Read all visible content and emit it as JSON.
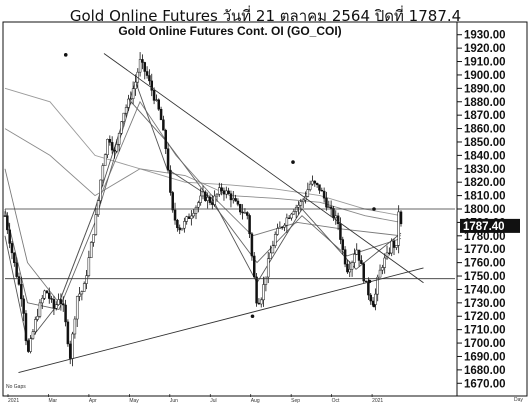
{
  "caption": "Gold Online Futures วันที่ 21 ตุลาคม 2564 ปิดที่ 1787.4",
  "chart_data": {
    "type": "candlestick",
    "title": "Gold Online Futures Cont. OI (GO_COI)",
    "y_ticks": [
      1670,
      1680,
      1690,
      1700,
      1710,
      1720,
      1730,
      1740,
      1750,
      1760,
      1770,
      1780,
      1790,
      1800,
      1810,
      1820,
      1830,
      1840,
      1850,
      1860,
      1870,
      1880,
      1890,
      1900,
      1910,
      1920,
      1930
    ],
    "y_tick_labels": [
      "1670.00",
      "1680.00",
      "1690.00",
      "1700.00",
      "1710.00",
      "1720.00",
      "1730.00",
      "1740.00",
      "1750.00",
      "1760.00",
      "1770.00",
      "1780.00",
      "1790.00",
      "1800.00",
      "1810.00",
      "1820.00",
      "1830.00",
      "1840.00",
      "1850.00",
      "1860.00",
      "1870.00",
      "1880.00",
      "1890.00",
      "1900.00",
      "1910.00",
      "1920.00",
      "1930.00"
    ],
    "ylim": [
      1662,
      1938
    ],
    "x_tick_labels": [
      "2021",
      "Mar",
      "Apr",
      "May",
      "Jun",
      "Jul",
      "Aug",
      "Sep",
      "Oct",
      "2021"
    ],
    "x_unit": "Day",
    "bottom_left_note": "No Gaps",
    "grid": false,
    "last_price": 1787.4,
    "last_price_label": "1787.40",
    "horizontal_levels": [
      1800,
      1748
    ],
    "trendlines": [
      {
        "from": [
          0.03,
          1678
        ],
        "to": [
          0.93,
          1756
        ]
      },
      {
        "from": [
          0.22,
          1916
        ],
        "to": [
          0.93,
          1745
        ]
      }
    ],
    "price_path": [
      [
        0.0,
        1795
      ],
      [
        0.02,
        1760
      ],
      [
        0.04,
        1730
      ],
      [
        0.05,
        1690
      ],
      [
        0.07,
        1720
      ],
      [
        0.09,
        1740
      ],
      [
        0.11,
        1725
      ],
      [
        0.12,
        1735
      ],
      [
        0.13,
        1725
      ],
      [
        0.145,
        1690
      ],
      [
        0.16,
        1735
      ],
      [
        0.175,
        1740
      ],
      [
        0.19,
        1770
      ],
      [
        0.205,
        1800
      ],
      [
        0.215,
        1830
      ],
      [
        0.23,
        1855
      ],
      [
        0.245,
        1840
      ],
      [
        0.26,
        1870
      ],
      [
        0.275,
        1880
      ],
      [
        0.29,
        1895
      ],
      [
        0.3,
        1910
      ],
      [
        0.315,
        1900
      ],
      [
        0.33,
        1885
      ],
      [
        0.345,
        1870
      ],
      [
        0.36,
        1840
      ],
      [
        0.37,
        1800
      ],
      [
        0.38,
        1790
      ],
      [
        0.39,
        1785
      ],
      [
        0.4,
        1790
      ],
      [
        0.42,
        1800
      ],
      [
        0.44,
        1810
      ],
      [
        0.46,
        1805
      ],
      [
        0.48,
        1815
      ],
      [
        0.5,
        1810
      ],
      [
        0.52,
        1800
      ],
      [
        0.54,
        1795
      ],
      [
        0.55,
        1760
      ],
      [
        0.56,
        1730
      ],
      [
        0.57,
        1735
      ],
      [
        0.585,
        1760
      ],
      [
        0.6,
        1780
      ],
      [
        0.62,
        1790
      ],
      [
        0.64,
        1800
      ],
      [
        0.66,
        1805
      ],
      [
        0.68,
        1820
      ],
      [
        0.7,
        1815
      ],
      [
        0.72,
        1800
      ],
      [
        0.74,
        1790
      ],
      [
        0.75,
        1770
      ],
      [
        0.76,
        1755
      ],
      [
        0.77,
        1760
      ],
      [
        0.78,
        1772
      ],
      [
        0.79,
        1760
      ],
      [
        0.8,
        1745
      ],
      [
        0.81,
        1735
      ],
      [
        0.82,
        1730
      ],
      [
        0.83,
        1750
      ],
      [
        0.84,
        1760
      ],
      [
        0.85,
        1765
      ],
      [
        0.86,
        1775
      ],
      [
        0.87,
        1770
      ],
      [
        0.875,
        1800
      ],
      [
        0.88,
        1787.4
      ]
    ],
    "moving_averages": [
      [
        [
          0.0,
          1890
        ],
        [
          0.1,
          1880
        ],
        [
          0.2,
          1840
        ],
        [
          0.3,
          1830
        ],
        [
          0.4,
          1820
        ],
        [
          0.5,
          1818
        ],
        [
          0.6,
          1815
        ],
        [
          0.7,
          1810
        ],
        [
          0.8,
          1800
        ],
        [
          0.88,
          1795
        ]
      ],
      [
        [
          0.0,
          1860
        ],
        [
          0.1,
          1840
        ],
        [
          0.2,
          1810
        ],
        [
          0.3,
          1830
        ],
        [
          0.4,
          1825
        ],
        [
          0.5,
          1810
        ],
        [
          0.6,
          1808
        ],
        [
          0.7,
          1805
        ],
        [
          0.8,
          1795
        ],
        [
          0.88,
          1790
        ]
      ],
      [
        [
          0.0,
          1830
        ],
        [
          0.05,
          1760
        ],
        [
          0.12,
          1730
        ],
        [
          0.2,
          1800
        ],
        [
          0.3,
          1880
        ],
        [
          0.38,
          1840
        ],
        [
          0.46,
          1810
        ],
        [
          0.55,
          1780
        ],
        [
          0.65,
          1790
        ],
        [
          0.75,
          1785
        ],
        [
          0.88,
          1780
        ]
      ],
      [
        [
          0.0,
          1800
        ],
        [
          0.05,
          1730
        ],
        [
          0.12,
          1725
        ],
        [
          0.2,
          1790
        ],
        [
          0.28,
          1880
        ],
        [
          0.36,
          1850
        ],
        [
          0.46,
          1805
        ],
        [
          0.56,
          1760
        ],
        [
          0.66,
          1795
        ],
        [
          0.76,
          1765
        ],
        [
          0.88,
          1778
        ]
      ],
      [
        [
          0.0,
          1780
        ],
        [
          0.05,
          1700
        ],
        [
          0.12,
          1730
        ],
        [
          0.2,
          1800
        ],
        [
          0.29,
          1895
        ],
        [
          0.36,
          1830
        ],
        [
          0.46,
          1808
        ],
        [
          0.56,
          1745
        ],
        [
          0.66,
          1800
        ],
        [
          0.78,
          1755
        ],
        [
          0.88,
          1782
        ]
      ]
    ]
  }
}
